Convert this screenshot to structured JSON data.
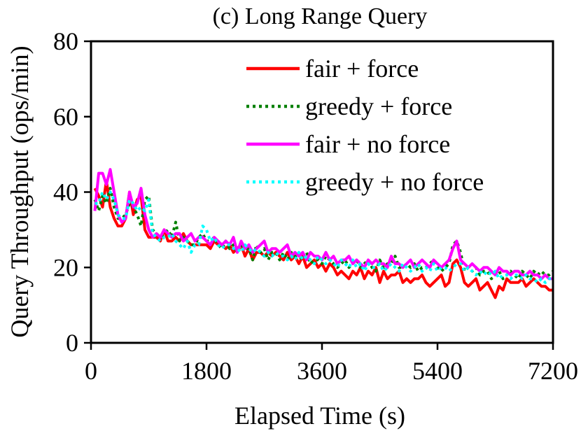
{
  "chart_data": {
    "type": "line",
    "title": "(c) Long Range Query",
    "xlabel": "Elapsed Time (s)",
    "ylabel": "Query Throughput (ops/min)",
    "xlim": [
      0,
      7200
    ],
    "ylim": [
      0,
      80
    ],
    "xticks": [
      0,
      1800,
      3600,
      5400,
      7200
    ],
    "yticks": [
      0,
      20,
      40,
      60,
      80
    ],
    "legend_position": "top-right",
    "series": [
      {
        "name": "fair + force",
        "color": "#ff0000",
        "dash": "solid",
        "x": [
          60,
          120,
          180,
          240,
          300,
          360,
          420,
          480,
          540,
          600,
          660,
          720,
          780,
          840,
          900,
          960,
          1020,
          1080,
          1140,
          1200,
          1260,
          1320,
          1380,
          1440,
          1500,
          1560,
          1620,
          1680,
          1740,
          1800,
          1860,
          1920,
          1980,
          2040,
          2100,
          2160,
          2220,
          2280,
          2340,
          2400,
          2460,
          2520,
          2580,
          2640,
          2700,
          2760,
          2820,
          2880,
          2940,
          3000,
          3060,
          3120,
          3180,
          3240,
          3300,
          3360,
          3420,
          3480,
          3540,
          3600,
          3660,
          3720,
          3780,
          3840,
          3900,
          3960,
          4020,
          4080,
          4140,
          4200,
          4260,
          4320,
          4380,
          4440,
          4500,
          4560,
          4620,
          4680,
          4740,
          4800,
          4860,
          4920,
          4980,
          5040,
          5100,
          5160,
          5220,
          5280,
          5340,
          5400,
          5460,
          5520,
          5580,
          5640,
          5700,
          5760,
          5820,
          5880,
          5940,
          6000,
          6060,
          6120,
          6180,
          6240,
          6300,
          6360,
          6420,
          6480,
          6540,
          6600,
          6660,
          6720,
          6780,
          6840,
          6900,
          6960,
          7020,
          7080,
          7140,
          7200
        ],
        "values": [
          41,
          39,
          36,
          43,
          36,
          33,
          31,
          31,
          33,
          40,
          34,
          38,
          39,
          30,
          28,
          28,
          28,
          27,
          30,
          27,
          27,
          28,
          27,
          29,
          27,
          26,
          26,
          26,
          26,
          26,
          25,
          27,
          26,
          26,
          25,
          26,
          24,
          25,
          26,
          23,
          25,
          22,
          24,
          24,
          23,
          24,
          23,
          24,
          23,
          22,
          24,
          22,
          23,
          21,
          23,
          20,
          21,
          22,
          20,
          21,
          19,
          21,
          20,
          18,
          19,
          18,
          17,
          19,
          18,
          20,
          17,
          19,
          18,
          20,
          16,
          19,
          17,
          18,
          18,
          19,
          16,
          17,
          16,
          17,
          17,
          18,
          16,
          15,
          16,
          17,
          18,
          15,
          16,
          21,
          22,
          20,
          16,
          15,
          16,
          17,
          14,
          15,
          16,
          14,
          12,
          15,
          14,
          17,
          16,
          16,
          16,
          17,
          15,
          16,
          17,
          16,
          15,
          15,
          14,
          14
        ]
      },
      {
        "name": "greedy + force",
        "color": "#008000",
        "dash": "dotted",
        "x": [
          60,
          120,
          180,
          240,
          300,
          360,
          420,
          480,
          540,
          600,
          660,
          720,
          780,
          840,
          900,
          960,
          1020,
          1080,
          1140,
          1200,
          1260,
          1320,
          1380,
          1440,
          1500,
          1560,
          1620,
          1680,
          1740,
          1800,
          1860,
          1920,
          1980,
          2040,
          2100,
          2160,
          2220,
          2280,
          2340,
          2400,
          2460,
          2520,
          2580,
          2640,
          2700,
          2760,
          2820,
          2880,
          2940,
          3000,
          3060,
          3120,
          3180,
          3240,
          3300,
          3360,
          3420,
          3480,
          3540,
          3600,
          3660,
          3720,
          3780,
          3840,
          3900,
          3960,
          4020,
          4080,
          4140,
          4200,
          4260,
          4320,
          4380,
          4440,
          4500,
          4560,
          4620,
          4680,
          4740,
          4800,
          4860,
          4920,
          4980,
          5040,
          5100,
          5160,
          5220,
          5280,
          5340,
          5400,
          5460,
          5520,
          5580,
          5640,
          5700,
          5760,
          5820,
          5880,
          5940,
          6000,
          6060,
          6120,
          6180,
          6240,
          6300,
          6360,
          6420,
          6480,
          6540,
          6600,
          6660,
          6720,
          6780,
          6840,
          6900,
          6960,
          7020,
          7080,
          7140,
          7200
        ],
        "values": [
          38,
          35,
          39,
          37,
          41,
          36,
          33,
          33,
          34,
          37,
          36,
          34,
          31,
          38,
          39,
          30,
          29,
          28,
          29,
          30,
          28,
          32,
          27,
          28,
          27,
          26,
          26,
          28,
          29,
          27,
          27,
          28,
          26,
          25,
          27,
          25,
          26,
          24,
          26,
          25,
          25,
          22,
          26,
          24,
          25,
          22,
          24,
          24,
          22,
          24,
          22,
          24,
          23,
          23,
          22,
          24,
          21,
          22,
          22,
          21,
          23,
          22,
          21,
          20,
          21,
          22,
          20,
          21,
          22,
          20,
          21,
          22,
          20,
          19,
          22,
          20,
          21,
          21,
          23,
          20,
          20,
          21,
          20,
          21,
          19,
          20,
          20,
          21,
          22,
          20,
          19,
          20,
          21,
          26,
          27,
          24,
          19,
          20,
          19,
          20,
          18,
          19,
          19,
          17,
          18,
          19,
          17,
          18,
          19,
          18,
          17,
          19,
          18,
          17,
          19,
          18,
          19,
          18,
          18,
          19
        ]
      },
      {
        "name": "fair + no force",
        "color": "#ff00ff",
        "dash": "solid",
        "x": [
          60,
          120,
          180,
          240,
          300,
          360,
          420,
          480,
          540,
          600,
          660,
          720,
          780,
          840,
          900,
          960,
          1020,
          1080,
          1140,
          1200,
          1260,
          1320,
          1380,
          1440,
          1500,
          1560,
          1620,
          1680,
          1740,
          1800,
          1860,
          1920,
          1980,
          2040,
          2100,
          2160,
          2220,
          2280,
          2340,
          2400,
          2460,
          2520,
          2580,
          2640,
          2700,
          2760,
          2820,
          2880,
          2940,
          3000,
          3060,
          3120,
          3180,
          3240,
          3300,
          3360,
          3420,
          3480,
          3540,
          3600,
          3660,
          3720,
          3780,
          3840,
          3900,
          3960,
          4020,
          4080,
          4140,
          4200,
          4260,
          4320,
          4380,
          4440,
          4500,
          4560,
          4620,
          4680,
          4740,
          4800,
          4860,
          4920,
          4980,
          5040,
          5100,
          5160,
          5220,
          5280,
          5340,
          5400,
          5460,
          5520,
          5580,
          5640,
          5700,
          5760,
          5820,
          5880,
          5940,
          6000,
          6060,
          6120,
          6180,
          6240,
          6300,
          6360,
          6420,
          6480,
          6540,
          6600,
          6660,
          6720,
          6780,
          6840,
          6900,
          6960,
          7020,
          7080,
          7140,
          7200
        ],
        "values": [
          35,
          45,
          45,
          42,
          46,
          40,
          34,
          32,
          33,
          40,
          36,
          37,
          41,
          34,
          30,
          28,
          29,
          28,
          30,
          29,
          28,
          29,
          29,
          27,
          28,
          29,
          27,
          28,
          28,
          27,
          26,
          28,
          27,
          26,
          27,
          26,
          28,
          24,
          27,
          25,
          26,
          24,
          25,
          26,
          27,
          24,
          25,
          25,
          24,
          25,
          26,
          23,
          24,
          23,
          24,
          22,
          24,
          23,
          23,
          22,
          24,
          22,
          23,
          21,
          22,
          22,
          23,
          21,
          22,
          21,
          20,
          22,
          21,
          22,
          21,
          21,
          20,
          23,
          21,
          21,
          20,
          21,
          22,
          20,
          21,
          22,
          21,
          20,
          22,
          21,
          20,
          21,
          22,
          25,
          27,
          22,
          21,
          20,
          21,
          20,
          19,
          20,
          20,
          19,
          18,
          20,
          19,
          19,
          18,
          19,
          19,
          18,
          18,
          19,
          18,
          18,
          17,
          18,
          17,
          17
        ]
      },
      {
        "name": "greedy + no force",
        "color": "#00ffff",
        "dash": "dotted",
        "x": [
          60,
          120,
          180,
          240,
          300,
          360,
          420,
          480,
          540,
          600,
          660,
          720,
          780,
          840,
          900,
          960,
          1020,
          1080,
          1140,
          1200,
          1260,
          1320,
          1380,
          1440,
          1500,
          1560,
          1620,
          1680,
          1740,
          1800,
          1860,
          1920,
          1980,
          2040,
          2100,
          2160,
          2220,
          2280,
          2340,
          2400,
          2460,
          2520,
          2580,
          2640,
          2700,
          2760,
          2820,
          2880,
          2940,
          3000,
          3060,
          3120,
          3180,
          3240,
          3300,
          3360,
          3420,
          3480,
          3540,
          3600,
          3660,
          3720,
          3780,
          3840,
          3900,
          3960,
          4020,
          4080,
          4140,
          4200,
          4260,
          4320,
          4380,
          4440,
          4500,
          4560,
          4620,
          4680,
          4740,
          4800,
          4860,
          4920,
          4980,
          5040,
          5100,
          5160,
          5220,
          5280,
          5340,
          5400,
          5460,
          5520,
          5580,
          5640,
          5700,
          5760,
          5820,
          5880,
          5940,
          6000,
          6060,
          6120,
          6180,
          6240,
          6300,
          6360,
          6420,
          6480,
          6540,
          6600,
          6660,
          6720,
          6780,
          6840,
          6900,
          6960,
          7020,
          7080,
          7140,
          7200
        ],
        "values": [
          37,
          37,
          40,
          38,
          40,
          38,
          34,
          33,
          33,
          38,
          37,
          35,
          36,
          35,
          38,
          29,
          28,
          27,
          28,
          28,
          29,
          27,
          26,
          25,
          27,
          24,
          26,
          26,
          31,
          30,
          27,
          28,
          26,
          25,
          26,
          26,
          25,
          25,
          24,
          26,
          25,
          24,
          25,
          24,
          23,
          24,
          23,
          24,
          23,
          23,
          22,
          23,
          22,
          24,
          22,
          23,
          22,
          21,
          23,
          22,
          21,
          22,
          21,
          20,
          22,
          21,
          20,
          22,
          20,
          21,
          19,
          21,
          20,
          20,
          21,
          19,
          20,
          21,
          20,
          19,
          21,
          20,
          19,
          20,
          21,
          19,
          20,
          19,
          21,
          19,
          20,
          20,
          19,
          20,
          21,
          21,
          19,
          20,
          19,
          18,
          19,
          18,
          19,
          18,
          19,
          17,
          18,
          18,
          17,
          18,
          18,
          17,
          18,
          17,
          17,
          16,
          17,
          16,
          17,
          17
        ]
      }
    ]
  }
}
